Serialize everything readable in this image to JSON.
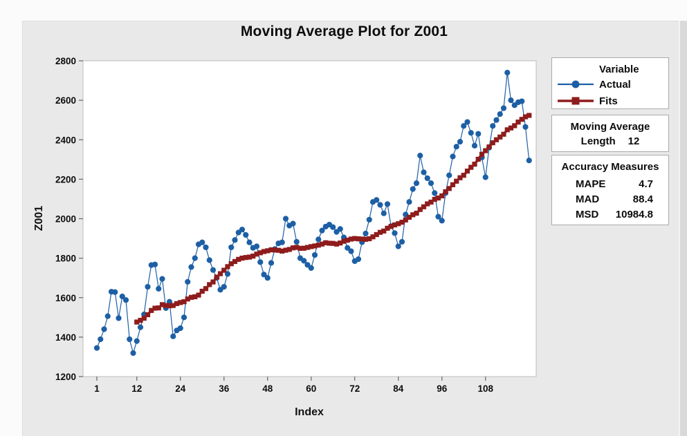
{
  "title": "Moving Average Plot for Z001",
  "legend": {
    "title": "Variable",
    "items": [
      {
        "label": "Actual",
        "marker": "circle",
        "color": "#1d5fa5"
      },
      {
        "label": "Fits",
        "marker": "square",
        "color": "#8e1c1c"
      }
    ]
  },
  "info_boxes": {
    "moving_average": {
      "title": "Moving Average",
      "length_label": "Length",
      "length_value": "12"
    },
    "accuracy": {
      "title": "Accuracy Measures",
      "rows": [
        {
          "label": "MAPE",
          "value": "4.7"
        },
        {
          "label": "MAD",
          "value": "88.4"
        },
        {
          "label": "MSD",
          "value": "10984.8"
        }
      ]
    }
  },
  "chart_data": {
    "type": "line",
    "title": "Moving Average Plot for Z001",
    "xlabel": "Index",
    "ylabel": "Z001",
    "x_ticks": [
      1,
      12,
      24,
      36,
      48,
      60,
      72,
      84,
      96,
      108
    ],
    "y_ticks": [
      1200,
      1400,
      1600,
      1800,
      2000,
      2200,
      2400,
      2600,
      2800
    ],
    "ylim": [
      1200,
      2800
    ],
    "grid": false,
    "legend_position": "outside-right",
    "moving_average_length": 12,
    "accuracy_measures": {
      "MAPE": 4.7,
      "MAD": 88.4,
      "MSD": 10984.8
    },
    "series": [
      {
        "name": "Actual",
        "color": "#1d5fa5",
        "marker": "circle",
        "x_start": 1,
        "values": [
          1345,
          1389,
          1440,
          1506,
          1630,
          1628,
          1496,
          1606,
          1588,
          1389,
          1319,
          1380,
          1450,
          1515,
          1655,
          1765,
          1768,
          1645,
          1695,
          1547,
          1579,
          1404,
          1434,
          1445,
          1500,
          1680,
          1755,
          1800,
          1870,
          1880,
          1855,
          1790,
          1740,
          1700,
          1640,
          1655,
          1720,
          1855,
          1892,
          1930,
          1945,
          1918,
          1880,
          1852,
          1860,
          1780,
          1717,
          1700,
          1776,
          1846,
          1875,
          1880,
          2000,
          1965,
          1975,
          1883,
          1800,
          1787,
          1766,
          1750,
          1816,
          1895,
          1940,
          1960,
          1970,
          1957,
          1933,
          1948,
          1905,
          1852,
          1835,
          1785,
          1795,
          1881,
          1925,
          1995,
          2085,
          2095,
          2070,
          2027,
          2074,
          1962,
          1927,
          1860,
          1883,
          2021,
          2085,
          2150,
          2180,
          2320,
          2235,
          2205,
          2180,
          2130,
          2010,
          1990,
          2130,
          2220,
          2315,
          2365,
          2390,
          2470,
          2490,
          2435,
          2370,
          2430,
          2310,
          2210,
          2360,
          2470,
          2500,
          2530,
          2560,
          2740,
          2600,
          2575,
          2590,
          2595,
          2465,
          2295
        ]
      },
      {
        "name": "Fits",
        "color": "#8e1c1c",
        "marker": "square",
        "derivation": "trailing moving average of Actual with length 12, plotted from index 12 to 120"
      }
    ]
  }
}
